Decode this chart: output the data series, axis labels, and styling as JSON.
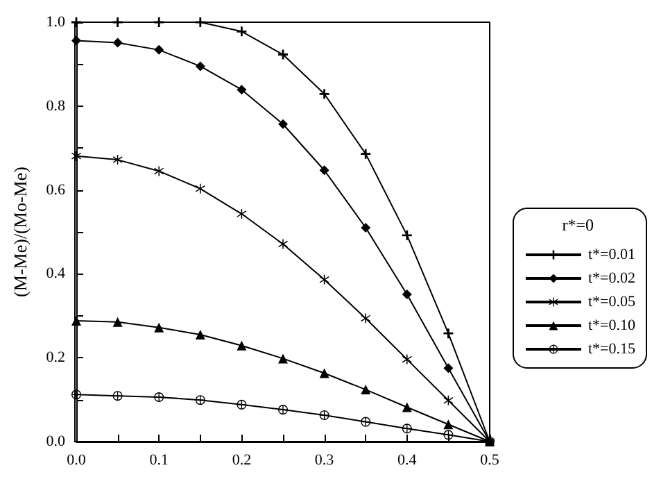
{
  "chart_data": {
    "type": "line",
    "ylabel": "(M-Me)/(Mo-Me)",
    "legend_title": "r*=0",
    "legend": "right",
    "x": [
      0,
      0.05,
      0.1,
      0.15,
      0.2,
      0.25,
      0.3,
      0.35,
      0.4,
      0.45,
      0.5
    ],
    "xlim": [
      0,
      0.5
    ],
    "xticks": [
      {
        "value": 0,
        "label": "0.0"
      },
      {
        "value": 0.1,
        "label": "0.1"
      },
      {
        "value": 0.2,
        "label": "0.2"
      },
      {
        "value": 0.3,
        "label": "0.3"
      },
      {
        "value": 0.4,
        "label": "0.4"
      },
      {
        "value": 0.5,
        "label": "0.5"
      }
    ],
    "ylim": [
      0,
      1
    ],
    "yticks": [
      {
        "value": 0,
        "label": "0.0"
      },
      {
        "value": 0.2,
        "label": "0.2"
      },
      {
        "value": 0.4,
        "label": "0.4"
      },
      {
        "value": 0.6,
        "label": "0.6"
      },
      {
        "value": 0.8,
        "label": "0.8"
      },
      {
        "value": 1,
        "label": "1.0"
      }
    ],
    "grid": false,
    "series": [
      {
        "name": "t*=0.01",
        "color": "#000000",
        "marker": "cross",
        "values": [
          1,
          1,
          1,
          1,
          0.978,
          0.923,
          0.829,
          0.686,
          0.492,
          0.258,
          0
        ]
      },
      {
        "name": "t*=0.02",
        "color": "#000000",
        "marker": "diamond",
        "values": [
          0.956,
          0.951,
          0.934,
          0.895,
          0.839,
          0.757,
          0.647,
          0.51,
          0.351,
          0.175,
          0
        ]
      },
      {
        "name": "t*=0.05",
        "color": "#000000",
        "marker": "star",
        "values": [
          0.681,
          0.672,
          0.645,
          0.603,
          0.543,
          0.471,
          0.386,
          0.294,
          0.196,
          0.098,
          0
        ]
      },
      {
        "name": "t*=0.10",
        "color": "#000000",
        "marker": "triangle",
        "values": [
          0.288,
          0.285,
          0.272,
          0.255,
          0.229,
          0.198,
          0.163,
          0.124,
          0.082,
          0.041,
          0
        ]
      },
      {
        "name": "t*=0.15",
        "color": "#000000",
        "marker": "circle",
        "values": [
          0.112,
          0.109,
          0.106,
          0.099,
          0.088,
          0.076,
          0.063,
          0.047,
          0.031,
          0.016,
          0
        ]
      }
    ]
  }
}
